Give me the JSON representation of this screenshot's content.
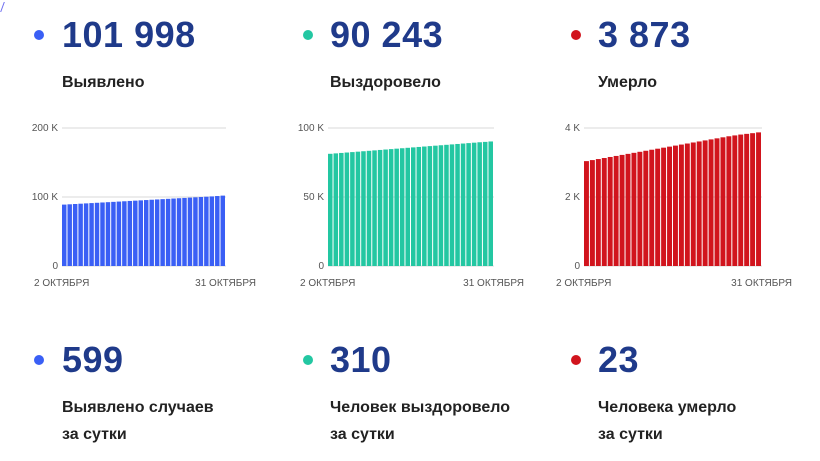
{
  "summary": [
    {
      "id": "detected",
      "value": "101 998",
      "label": "Выявлено",
      "color": "#3a5ff5"
    },
    {
      "id": "recovered",
      "value": "90 243",
      "label": "Выздоровело",
      "color": "#23c7a2"
    },
    {
      "id": "deaths",
      "value": "3 873",
      "label": "Умерло",
      "color": "#d1141d"
    }
  ],
  "daily": [
    {
      "id": "detected-daily",
      "value": "599",
      "label_line1": "Выявлено случаев",
      "label_line2": "за сутки",
      "color": "#3a5ff5"
    },
    {
      "id": "recovered-daily",
      "value": "310",
      "label_line1": "Человек выздоровело",
      "label_line2": "за сутки",
      "color": "#23c7a2"
    },
    {
      "id": "deaths-daily",
      "value": "23",
      "label_line1": "Человека умерло",
      "label_line2": "за сутки",
      "color": "#d1141d"
    }
  ],
  "chart_data": [
    {
      "type": "bar",
      "color": "#3a5ff5",
      "x_start_label": "2 ОКТЯБРЯ",
      "x_end_label": "31 ОКТЯБРЯ",
      "y_ticks": [
        "0",
        "100 K",
        "200 K"
      ],
      "y_tick_values": [
        0,
        100000,
        200000
      ],
      "ylim": [
        0,
        200000
      ],
      "values": [
        88980,
        89420,
        89860,
        90300,
        90740,
        91180,
        91620,
        92060,
        92500,
        92940,
        93380,
        93820,
        94260,
        94700,
        95140,
        95580,
        96020,
        96460,
        96900,
        97340,
        97780,
        98220,
        98660,
        99100,
        99540,
        99980,
        100420,
        100860,
        101400,
        101998
      ]
    },
    {
      "type": "bar",
      "color": "#23c7a2",
      "x_start_label": "2 ОКТЯБРЯ",
      "x_end_label": "31 ОКТЯБРЯ",
      "y_ticks": [
        "0",
        "50 K",
        "100 K"
      ],
      "y_tick_values": [
        0,
        50000,
        100000
      ],
      "ylim": [
        0,
        100000
      ],
      "values": [
        81300,
        81610,
        81920,
        82230,
        82540,
        82850,
        83160,
        83470,
        83780,
        84090,
        84400,
        84710,
        85020,
        85330,
        85640,
        85950,
        86260,
        86570,
        86880,
        87190,
        87500,
        87810,
        88120,
        88430,
        88740,
        89050,
        89360,
        89670,
        89933,
        90243
      ]
    },
    {
      "type": "bar",
      "color": "#d1141d",
      "x_start_label": "2 ОКТЯБРЯ",
      "x_end_label": "31 ОКТЯБРЯ",
      "y_ticks": [
        "0",
        "2 K",
        "4 K"
      ],
      "y_tick_values": [
        0,
        2000,
        4000
      ],
      "ylim": [
        0,
        4000
      ],
      "values": [
        3040,
        3070,
        3100,
        3130,
        3160,
        3190,
        3220,
        3250,
        3280,
        3310,
        3340,
        3370,
        3400,
        3430,
        3460,
        3490,
        3520,
        3550,
        3580,
        3610,
        3640,
        3670,
        3700,
        3730,
        3760,
        3785,
        3810,
        3830,
        3850,
        3873
      ]
    }
  ]
}
